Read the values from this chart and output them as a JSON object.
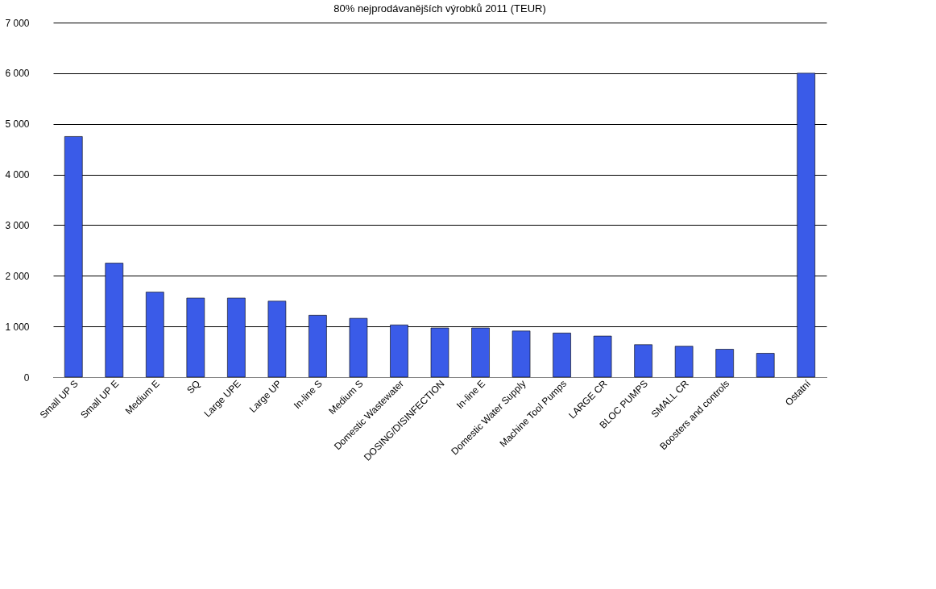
{
  "chart_data": {
    "type": "bar",
    "title": "80% nejprodávanějších výrobků 2011 (TEUR)",
    "categories": [
      "Small UP S",
      "Small UP E",
      "Medium E",
      "SQ",
      "Large UPE",
      "Large UP",
      "In-line S",
      "Medium S",
      "Domestic Wastewater",
      "DOSING/DISINFECTION",
      "In-line E",
      "Domestic Water Supply",
      "Machine Tool Pumps",
      "LARGE CR",
      "BLOC PUMPS",
      "SMALL CR",
      "Boosters and controls",
      null,
      "Ostatní"
    ],
    "values": [
      4750,
      2250,
      1680,
      1560,
      1560,
      1500,
      1220,
      1160,
      1030,
      970,
      970,
      910,
      870,
      810,
      640,
      610,
      550,
      470,
      6000
    ],
    "color": "#3a5be8",
    "ylim": [
      0,
      7000
    ],
    "yticks": [
      0,
      {
        "value": 1000,
        "label": "1 000"
      },
      {
        "value": 2000,
        "label": "2 000"
      },
      {
        "value": 3000,
        "label": "3 000"
      },
      {
        "value": 4000,
        "label": "4 000"
      },
      {
        "value": 5000,
        "label": "5 000"
      },
      {
        "value": 6000,
        "label": "6 000"
      },
      {
        "value": 7000,
        "label": "7 000"
      }
    ],
    "grid": true
  }
}
